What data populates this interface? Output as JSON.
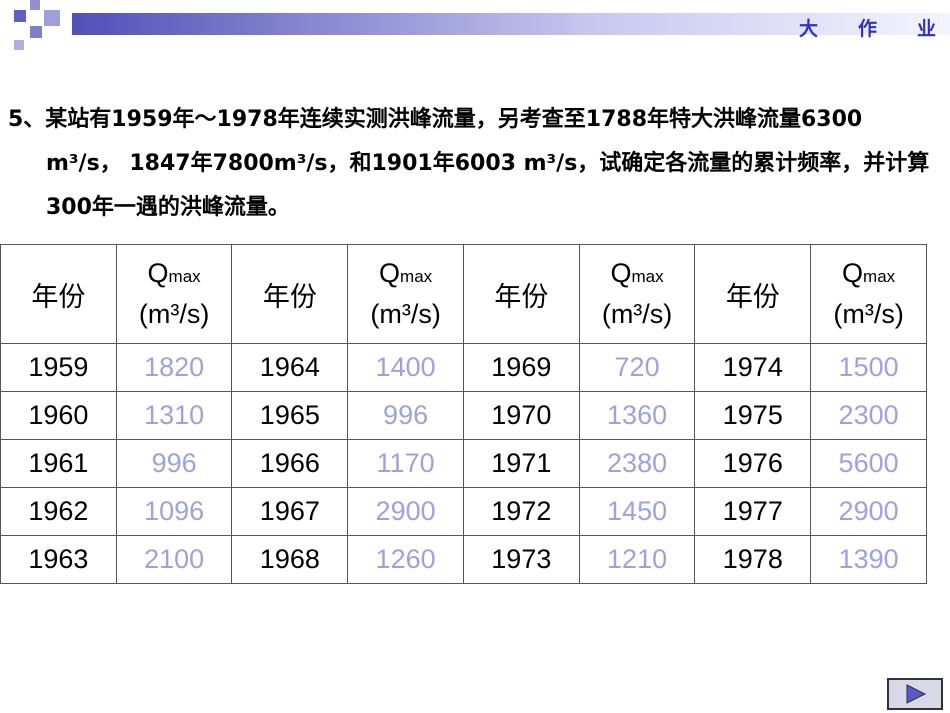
{
  "header": {
    "section": "大作业"
  },
  "problem": {
    "text": "5、某站有1959年～1978年连续实测洪峰流量，另考查至1788年特大洪峰流量6300 m³/s， 1847年7800m³/s，和1901年6003 m³/s，试确定各流量的累计频率，并计算300年一遇的洪峰流量。"
  },
  "table": {
    "columns": [
      {
        "year_label": "年份",
        "q_symbol": "Q",
        "q_subscript": "max",
        "q_unit": "(m³/s)"
      },
      {
        "year_label": "年份",
        "q_symbol": "Q",
        "q_subscript": "max",
        "q_unit": "(m³/s)"
      },
      {
        "year_label": "年份",
        "q_symbol": "Q",
        "q_subscript": "max",
        "q_unit": "(m³/s)"
      },
      {
        "year_label": "年份",
        "q_symbol": "Q",
        "q_subscript": "max",
        "q_unit": "(m³/s)"
      }
    ],
    "rows": [
      [
        1959,
        1820,
        1964,
        1400,
        1969,
        720,
        1974,
        1500
      ],
      [
        1960,
        1310,
        1965,
        996,
        1970,
        1360,
        1975,
        2300
      ],
      [
        1961,
        996,
        1966,
        1170,
        1971,
        2380,
        1976,
        5600
      ],
      [
        1962,
        1096,
        1967,
        2900,
        1972,
        1450,
        1977,
        2900
      ],
      [
        1963,
        2100,
        1968,
        1260,
        1973,
        1210,
        1978,
        1390
      ]
    ]
  }
}
